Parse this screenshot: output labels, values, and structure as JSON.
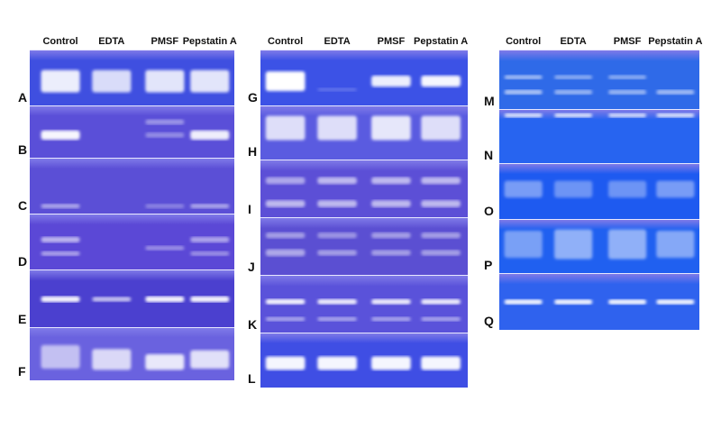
{
  "panels": [
    {
      "lanes": [
        "Control",
        "EDTA",
        "PMSF",
        "Pepstatin A"
      ],
      "rows": [
        "A",
        "B",
        "C",
        "D",
        "E",
        "F"
      ]
    },
    {
      "lanes": [
        "Control",
        "EDTA",
        "PMSF",
        "Pepstatin A"
      ],
      "rows": [
        "G",
        "H",
        "I",
        "J",
        "K",
        "L"
      ]
    },
    {
      "lanes": [
        "Control",
        "EDTA",
        "PMSF",
        "Pepstatin A"
      ],
      "rows": [
        "M",
        "N",
        "O",
        "P",
        "Q"
      ]
    }
  ],
  "colors": {
    "gel_violet": "#5b4fd6",
    "gel_blue": "#3c4fe0",
    "gel_bright_blue": "#1f5ef2",
    "band": "#ffffff"
  }
}
